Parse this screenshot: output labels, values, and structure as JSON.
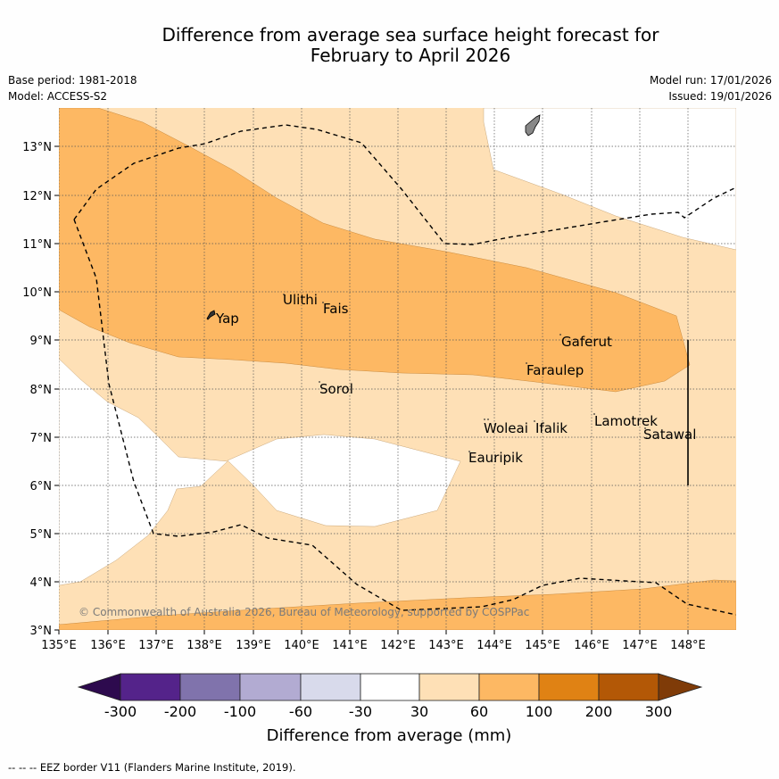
{
  "title": {
    "line1": "Difference from average sea surface height forecast for",
    "line2": "February to April 2026"
  },
  "meta": {
    "base_period": "Base period: 1981-2018",
    "model": "Model: ACCESS-S2",
    "model_run": "Model run: 17/01/2026",
    "issued": "Issued: 19/01/2026"
  },
  "map": {
    "x_ticks": [
      "135°E",
      "136°E",
      "137°E",
      "138°E",
      "139°E",
      "140°E",
      "141°E",
      "142°E",
      "143°E",
      "144°E",
      "145°E",
      "146°E",
      "147°E",
      "148°E"
    ],
    "y_ticks": [
      "3°N",
      "4°N",
      "5°N",
      "6°N",
      "7°N",
      "8°N",
      "9°N",
      "10°N",
      "11°N",
      "12°N",
      "13°N"
    ],
    "places": [
      {
        "name": "Yap"
      },
      {
        "name": "Ulithi"
      },
      {
        "name": "Fais"
      },
      {
        "name": "Gaferut"
      },
      {
        "name": "Faraulep"
      },
      {
        "name": "Sorol"
      },
      {
        "name": "Woleai"
      },
      {
        "name": "Ifalik"
      },
      {
        "name": "Lamotrek"
      },
      {
        "name": "Satawal"
      },
      {
        "name": "Eauripik"
      }
    ],
    "copyright": "© Commonwealth of Australia 2026, Bureau of Meteorology, supported by COSPPac"
  },
  "colorbar": {
    "ticks": [
      "-300",
      "-200",
      "-100",
      "-60",
      "-30",
      "30",
      "60",
      "100",
      "200",
      "300"
    ],
    "label": "Difference from average (mm)",
    "colors": [
      "#2d0a4e",
      "#54238a",
      "#8073ac",
      "#b2abd2",
      "#d8daeb",
      "#ffffff",
      "#fee0b6",
      "#fdb863",
      "#e08214",
      "#b35806",
      "#7f3b08"
    ]
  },
  "footnote": "--  --  -- EEZ border V11 (Flanders Marine Institute, 2019)."
}
